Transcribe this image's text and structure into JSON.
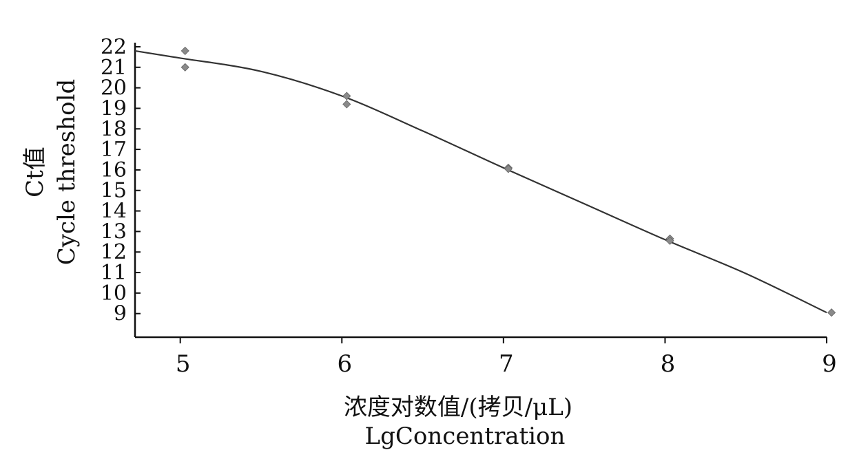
{
  "chart_data": {
    "type": "scatter",
    "xlabel_lines": [
      "浓度对数值/(拷贝/μL)",
      "LgConcentration"
    ],
    "ylabel_lines": [
      "Ct值",
      "Cycle threshold"
    ],
    "xlim": [
      4.72,
      9.0
    ],
    "ylim": [
      7.85,
      22.2
    ],
    "x_ticks": [
      5,
      6,
      7,
      8,
      9
    ],
    "y_ticks": [
      9,
      10,
      11,
      12,
      13,
      14,
      15,
      16,
      17,
      18,
      19,
      20,
      21,
      22
    ],
    "points": [
      {
        "x": 5.03,
        "y": 21.8
      },
      {
        "x": 5.03,
        "y": 21.0
      },
      {
        "x": 6.03,
        "y": 19.6
      },
      {
        "x": 6.03,
        "y": 19.2
      },
      {
        "x": 7.03,
        "y": 16.1
      },
      {
        "x": 7.03,
        "y": 16.05
      },
      {
        "x": 8.03,
        "y": 12.65
      },
      {
        "x": 8.03,
        "y": 12.55
      },
      {
        "x": 9.03,
        "y": 9.05
      }
    ],
    "fit_curve": [
      {
        "x": 4.72,
        "y": 21.8
      },
      {
        "x": 5.0,
        "y": 21.45
      },
      {
        "x": 5.5,
        "y": 20.8
      },
      {
        "x": 6.0,
        "y": 19.6
      },
      {
        "x": 6.5,
        "y": 17.9
      },
      {
        "x": 7.0,
        "y": 16.1
      },
      {
        "x": 7.5,
        "y": 14.35
      },
      {
        "x": 8.0,
        "y": 12.6
      },
      {
        "x": 8.5,
        "y": 10.95
      },
      {
        "x": 9.0,
        "y": 9.05
      }
    ],
    "grid": false,
    "legend": "none"
  }
}
